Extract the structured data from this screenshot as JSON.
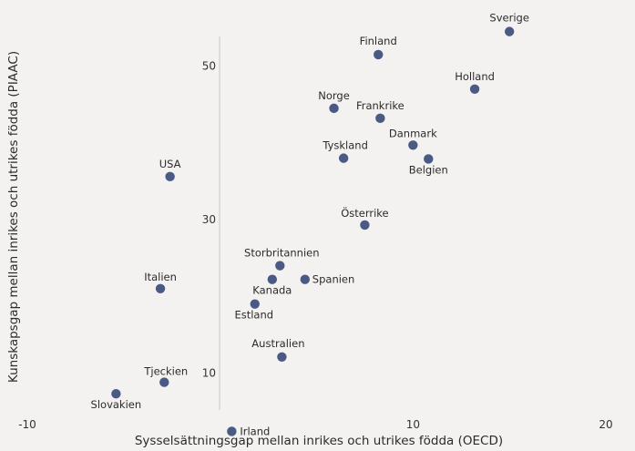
{
  "chart_data": {
    "type": "scatter",
    "title": "",
    "xlabel": "Sysselsättningsgap mellan inrikes och utrikes födda (OECD)",
    "ylabel": "Kunskapsgap mellan inrikes och utrikes födda (PIAAC)",
    "xlim": [
      -10,
      20
    ],
    "ylim": [
      4,
      56
    ],
    "xticks": [
      -10,
      10,
      20
    ],
    "yticks": [
      10,
      30,
      50
    ],
    "grid": false,
    "point_color": "#4a5a85",
    "points": [
      {
        "label": "Sverige",
        "x": 15.0,
        "y": 54.5
      },
      {
        "label": "Finland",
        "x": 8.2,
        "y": 51.5
      },
      {
        "label": "Holland",
        "x": 13.2,
        "y": 47.0
      },
      {
        "label": "Norge",
        "x": 5.9,
        "y": 44.5
      },
      {
        "label": "Frankrike",
        "x": 8.3,
        "y": 43.2
      },
      {
        "label": "Danmark",
        "x": 10.0,
        "y": 39.7
      },
      {
        "label": "Tyskland",
        "x": 6.4,
        "y": 38.0
      },
      {
        "label": "Belgien",
        "x": 10.8,
        "y": 37.9
      },
      {
        "label": "USA",
        "x": -2.6,
        "y": 35.6
      },
      {
        "label": "Österrike",
        "x": 7.5,
        "y": 29.3
      },
      {
        "label": "Storbritannien",
        "x": 3.1,
        "y": 24.0
      },
      {
        "label": "Kanada",
        "x": 2.7,
        "y": 22.2
      },
      {
        "label": "Spanien",
        "x": 4.4,
        "y": 22.2
      },
      {
        "label": "Italien",
        "x": -3.1,
        "y": 21.0
      },
      {
        "label": "Estland",
        "x": 1.8,
        "y": 19.0
      },
      {
        "label": "Australien",
        "x": 3.2,
        "y": 12.1
      },
      {
        "label": "Tjeckien",
        "x": -2.9,
        "y": 8.8
      },
      {
        "label": "Slovakien",
        "x": -5.4,
        "y": 7.3
      },
      {
        "label": "Irland",
        "x": 0.6,
        "y": 2.4
      }
    ]
  }
}
